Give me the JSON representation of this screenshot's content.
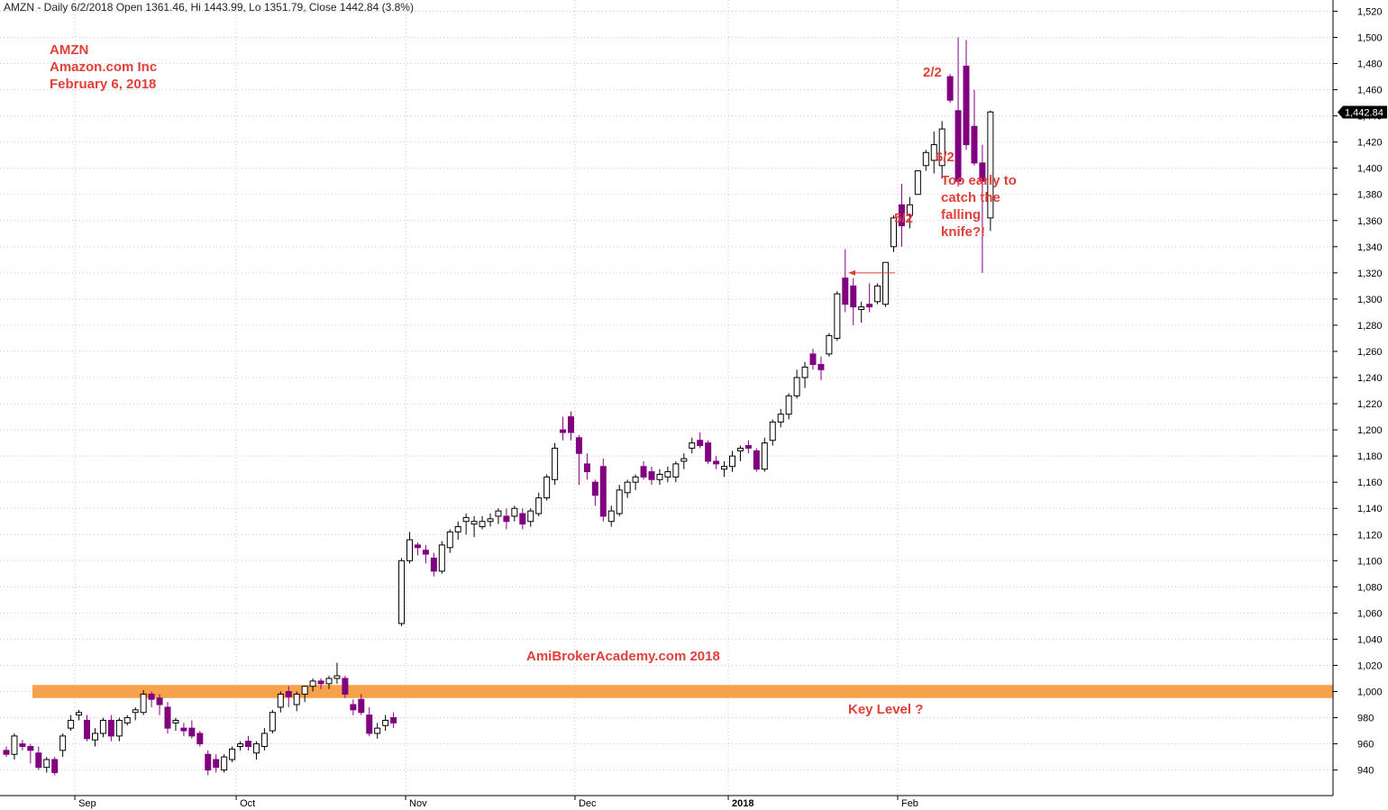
{
  "header": {
    "text": "AMZN - Daily 6/2/2018 Open 1361.46, Hi 1443.99, Lo 1351.79, Close 1442.84 (3.8%)"
  },
  "info": {
    "ticker": "AMZN",
    "company": "Amazon.com Inc",
    "date": "February 6, 2018"
  },
  "annotations": {
    "label_2_2": "2/2",
    "label_6_2": "6/2",
    "label_5_2": "5/2",
    "falling_knife": [
      "Too early to",
      "catch the",
      "falling",
      "knife?!"
    ],
    "watermark": "AmiBrokerAcademy.com  2018",
    "key_level": "Key Level ?"
  },
  "colors": {
    "bull_fill": "#ffffff",
    "bear_fill": "#800080",
    "bear_wick": "#800080",
    "bull_wick": "#000000",
    "key_level_band": "#f7a14a",
    "annotation": "#e0403a",
    "grid": "#c8c8c8"
  },
  "chart_data": {
    "type": "candlestick",
    "title": "AMZN - Daily 6/2/2018 Open 1361.46, Hi 1443.99, Lo 1351.79, Close 1442.84 (3.8%)",
    "ylim": [
      920,
      1530
    ],
    "y_ticks": [
      940,
      960,
      980,
      1000,
      1020,
      1040,
      1060,
      1080,
      1100,
      1120,
      1140,
      1160,
      1180,
      1200,
      1220,
      1240,
      1260,
      1280,
      1300,
      1320,
      1340,
      1360,
      1380,
      1400,
      1420,
      1440,
      1460,
      1480,
      1500,
      1520
    ],
    "y_tick_labels": [
      "940",
      "960",
      "980",
      "1,000",
      "1,020",
      "1,040",
      "1,060",
      "1,080",
      "1,100",
      "1,120",
      "1,140",
      "1,160",
      "1,180",
      "1,200",
      "1,220",
      "1,240",
      "1,260",
      "1,280",
      "1,300",
      "1,320",
      "1,340",
      "1,360",
      "1,380",
      "1,400",
      "1,420",
      "1,440",
      "1,460",
      "1,480",
      "1,500",
      "1,520"
    ],
    "x_labels": [
      {
        "label": "Sep",
        "index": 9
      },
      {
        "label": "Oct",
        "index": 29
      },
      {
        "label": "Nov",
        "index": 50
      },
      {
        "label": "Dec",
        "index": 71
      },
      {
        "label": "2018",
        "index": 90
      },
      {
        "label": "Feb",
        "index": 111
      }
    ],
    "last_price_label": "1,442.84",
    "last_price": 1442.84,
    "key_level": {
      "low": 995,
      "high": 1005,
      "label": "Key Level ?"
    },
    "candles": [
      [
        955,
        958,
        950,
        952
      ],
      [
        952,
        968,
        948,
        966
      ],
      [
        960,
        963,
        955,
        958
      ],
      [
        958,
        960,
        945,
        955
      ],
      [
        953,
        958,
        940,
        942
      ],
      [
        942,
        950,
        938,
        948
      ],
      [
        948,
        950,
        936,
        938
      ],
      [
        955,
        968,
        950,
        966
      ],
      [
        972,
        982,
        970,
        978
      ],
      [
        982,
        986,
        978,
        984
      ],
      [
        978,
        982,
        962,
        964
      ],
      [
        963,
        972,
        958,
        968
      ],
      [
        968,
        980,
        965,
        978
      ],
      [
        978,
        982,
        962,
        966
      ],
      [
        966,
        980,
        962,
        978
      ],
      [
        976,
        982,
        974,
        980
      ],
      [
        984,
        988,
        978,
        986
      ],
      [
        984,
        1001,
        982,
        998
      ],
      [
        998,
        1000,
        988,
        994
      ],
      [
        995,
        998,
        982,
        990
      ],
      [
        988,
        992,
        968,
        972
      ],
      [
        976,
        980,
        970,
        978
      ],
      [
        972,
        976,
        966,
        970
      ],
      [
        972,
        978,
        964,
        966
      ],
      [
        968,
        970,
        958,
        960
      ],
      [
        952,
        955,
        936,
        940
      ],
      [
        948,
        952,
        938,
        942
      ],
      [
        940,
        952,
        938,
        950
      ],
      [
        948,
        958,
        946,
        956
      ],
      [
        958,
        962,
        955,
        960
      ],
      [
        962,
        966,
        955,
        958
      ],
      [
        953,
        962,
        948,
        960
      ],
      [
        958,
        972,
        955,
        968
      ],
      [
        970,
        986,
        968,
        984
      ],
      [
        988,
        1000,
        984,
        998
      ],
      [
        1000,
        1004,
        988,
        996
      ],
      [
        990,
        1000,
        985,
        998
      ],
      [
        998,
        1004,
        992,
        1004
      ],
      [
        1004,
        1010,
        1000,
        1008
      ],
      [
        1008,
        1010,
        1002,
        1006
      ],
      [
        1006,
        1012,
        1002,
        1010
      ],
      [
        1010,
        1022,
        1006,
        1012
      ],
      [
        1010,
        1012,
        995,
        998
      ],
      [
        990,
        994,
        982,
        986
      ],
      [
        994,
        998,
        982,
        984
      ],
      [
        982,
        988,
        966,
        968
      ],
      [
        968,
        976,
        964,
        972
      ],
      [
        974,
        982,
        970,
        978
      ],
      [
        980,
        984,
        972,
        976
      ],
      [
        1052,
        1102,
        1050,
        1100
      ],
      [
        1100,
        1122,
        1098,
        1116
      ],
      [
        1112,
        1114,
        1104,
        1110
      ],
      [
        1108,
        1112,
        1098,
        1105
      ],
      [
        1102,
        1106,
        1088,
        1092
      ],
      [
        1092,
        1115,
        1090,
        1112
      ],
      [
        1110,
        1124,
        1106,
        1122
      ],
      [
        1122,
        1130,
        1116,
        1126
      ],
      [
        1130,
        1136,
        1120,
        1133
      ],
      [
        1128,
        1134,
        1118,
        1130
      ],
      [
        1126,
        1134,
        1124,
        1130
      ],
      [
        1130,
        1136,
        1126,
        1132
      ],
      [
        1134,
        1140,
        1128,
        1138
      ],
      [
        1134,
        1140,
        1124,
        1130
      ],
      [
        1134,
        1142,
        1130,
        1140
      ],
      [
        1136,
        1140,
        1124,
        1128
      ],
      [
        1130,
        1140,
        1126,
        1138
      ],
      [
        1136,
        1152,
        1134,
        1148
      ],
      [
        1148,
        1166,
        1146,
        1164
      ],
      [
        1162,
        1190,
        1158,
        1186
      ],
      [
        1200,
        1210,
        1192,
        1198
      ],
      [
        1210,
        1214,
        1192,
        1198
      ],
      [
        1194,
        1196,
        1158,
        1182
      ],
      [
        1174,
        1182,
        1162,
        1168
      ],
      [
        1160,
        1162,
        1142,
        1150
      ],
      [
        1172,
        1178,
        1130,
        1134
      ],
      [
        1130,
        1142,
        1126,
        1138
      ],
      [
        1136,
        1158,
        1134,
        1154
      ],
      [
        1152,
        1162,
        1148,
        1160
      ],
      [
        1160,
        1166,
        1154,
        1164
      ],
      [
        1172,
        1176,
        1162,
        1164
      ],
      [
        1168,
        1172,
        1158,
        1162
      ],
      [
        1162,
        1170,
        1158,
        1166
      ],
      [
        1164,
        1172,
        1160,
        1168
      ],
      [
        1164,
        1176,
        1160,
        1174
      ],
      [
        1176,
        1182,
        1170,
        1178
      ],
      [
        1186,
        1194,
        1182,
        1190
      ],
      [
        1192,
        1198,
        1186,
        1188
      ],
      [
        1190,
        1192,
        1174,
        1176
      ],
      [
        1176,
        1180,
        1170,
        1174
      ],
      [
        1170,
        1176,
        1164,
        1172
      ],
      [
        1172,
        1184,
        1168,
        1180
      ],
      [
        1184,
        1188,
        1176,
        1186
      ],
      [
        1188,
        1192,
        1182,
        1186
      ],
      [
        1184,
        1186,
        1168,
        1170
      ],
      [
        1170,
        1194,
        1168,
        1190
      ],
      [
        1192,
        1208,
        1188,
        1206
      ],
      [
        1206,
        1216,
        1202,
        1212
      ],
      [
        1212,
        1228,
        1208,
        1226
      ],
      [
        1226,
        1246,
        1224,
        1240
      ],
      [
        1240,
        1252,
        1232,
        1248
      ],
      [
        1258,
        1262,
        1246,
        1250
      ],
      [
        1250,
        1256,
        1238,
        1246
      ],
      [
        1258,
        1274,
        1256,
        1272
      ],
      [
        1270,
        1306,
        1268,
        1304
      ],
      [
        1316,
        1338,
        1290,
        1296
      ],
      [
        1310,
        1316,
        1280,
        1294
      ],
      [
        1292,
        1298,
        1282,
        1294
      ],
      [
        1296,
        1312,
        1290,
        1294
      ],
      [
        1298,
        1312,
        1296,
        1310
      ],
      [
        1296,
        1328,
        1294,
        1328
      ],
      [
        1340,
        1364,
        1336,
        1362
      ],
      [
        1372,
        1388,
        1340,
        1356
      ],
      [
        1364,
        1378,
        1354,
        1372
      ],
      [
        1380,
        1398,
        1380,
        1398
      ],
      [
        1402,
        1414,
        1398,
        1412
      ],
      [
        1406,
        1428,
        1396,
        1418
      ],
      [
        1402,
        1436,
        1392,
        1430
      ],
      [
        1470,
        1472,
        1450,
        1452
      ],
      [
        1444,
        1500,
        1386,
        1390
      ],
      [
        1478,
        1498,
        1414,
        1418
      ],
      [
        1432,
        1460,
        1402,
        1404
      ],
      [
        1404,
        1418,
        1320,
        1390
      ],
      [
        1362,
        1444,
        1352,
        1443
      ]
    ]
  }
}
